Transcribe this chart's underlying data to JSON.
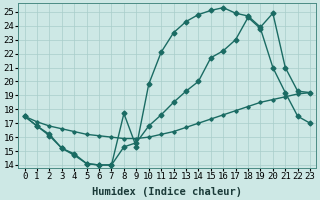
{
  "xlabel": "Humidex (Indice chaleur)",
  "bg_color": "#cde8e5",
  "grid_color": "#a8ceca",
  "line_color": "#1a6b63",
  "xlim": [
    -0.5,
    23.5
  ],
  "ylim": [
    13.8,
    25.6
  ],
  "xticks": [
    0,
    1,
    2,
    3,
    4,
    5,
    6,
    7,
    8,
    9,
    10,
    11,
    12,
    13,
    14,
    15,
    16,
    17,
    18,
    19,
    20,
    21,
    22,
    23
  ],
  "yticks": [
    14,
    15,
    16,
    17,
    18,
    19,
    20,
    21,
    22,
    23,
    24,
    25
  ],
  "line1_x": [
    0,
    1,
    2,
    3,
    4,
    5,
    6,
    7,
    8,
    9,
    10,
    11,
    12,
    13,
    14,
    15,
    16,
    17,
    18,
    19,
    20,
    21,
    22,
    23
  ],
  "line1_y": [
    17.5,
    16.8,
    16.2,
    15.2,
    14.8,
    14.1,
    14.0,
    14.0,
    17.7,
    15.3,
    19.8,
    22.1,
    23.5,
    24.3,
    24.8,
    25.1,
    25.3,
    24.9,
    24.7,
    23.9,
    24.9,
    21.0,
    19.3,
    19.2
  ],
  "line2_x": [
    0,
    1,
    2,
    3,
    4,
    5,
    6,
    7,
    8,
    9,
    10,
    11,
    12,
    13,
    14,
    15,
    16,
    17,
    18,
    19,
    20,
    21,
    22,
    23
  ],
  "line2_y": [
    17.5,
    16.8,
    16.1,
    15.2,
    14.7,
    14.1,
    14.0,
    14.0,
    15.3,
    15.6,
    16.8,
    17.6,
    18.5,
    19.3,
    20.0,
    21.7,
    22.2,
    23.0,
    24.6,
    23.8,
    21.0,
    19.2,
    17.5,
    17.0
  ],
  "line3_x": [
    0,
    1,
    2,
    3,
    4,
    5,
    6,
    7,
    8,
    9,
    10,
    11,
    12,
    13,
    14,
    15,
    16,
    17,
    18,
    19,
    20,
    21,
    22,
    23
  ],
  "line3_y": [
    17.5,
    17.1,
    16.8,
    16.6,
    16.4,
    16.2,
    16.1,
    16.0,
    15.9,
    15.9,
    16.0,
    16.2,
    16.4,
    16.7,
    17.0,
    17.3,
    17.6,
    17.9,
    18.2,
    18.5,
    18.7,
    18.9,
    19.1,
    19.2
  ],
  "lw": 1.0,
  "ms": 2.5,
  "xlabel_fontsize": 7.5,
  "tick_fontsize": 6.5
}
